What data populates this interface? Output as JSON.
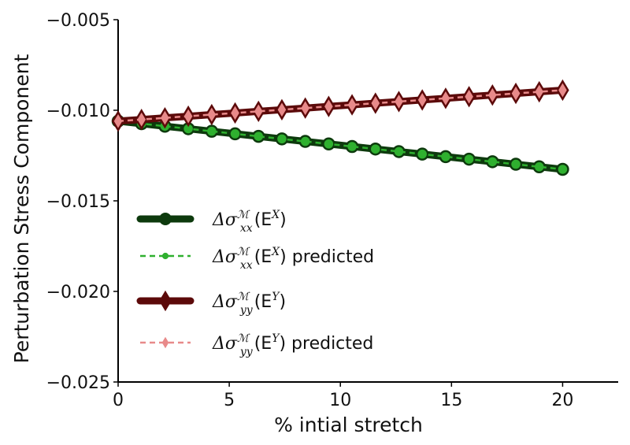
{
  "chart_data": {
    "type": "line",
    "xlabel": "% intial stretch",
    "ylabel": "Perturbation Stress Component",
    "xlim": [
      0,
      22.5
    ],
    "ylim": [
      -0.025,
      -0.005
    ],
    "xticks": [
      0,
      5,
      10,
      15,
      20
    ],
    "xtick_labels": [
      "0",
      "5",
      "10",
      "15",
      "20"
    ],
    "yticks": [
      -0.005,
      -0.01,
      -0.015,
      -0.02,
      -0.025
    ],
    "ytick_labels": [
      "−0.005",
      "−0.010",
      "−0.015",
      "−0.020",
      "−0.025"
    ],
    "grid": false,
    "legend_position": "lower-left",
    "x": [
      0,
      1.053,
      2.105,
      3.158,
      4.211,
      5.263,
      6.316,
      7.368,
      8.421,
      9.474,
      10.526,
      11.579,
      12.632,
      13.684,
      14.737,
      15.789,
      16.842,
      17.895,
      18.947,
      20
    ],
    "series": [
      {
        "name": "Δσxx(EX)",
        "legend_label": "Δσ",
        "legend_sub": "xx",
        "legend_sup": "ℳ",
        "legend_arg": "(E",
        "legend_arg_sup": "X",
        "legend_close": ")",
        "legend_suffix": "",
        "style": "solid",
        "marker": "circle",
        "color": "#0d3a0d",
        "fill": "#2fb02f",
        "values": [
          -0.0106,
          -0.01074,
          -0.01088,
          -0.01102,
          -0.01116,
          -0.0113,
          -0.01144,
          -0.01158,
          -0.01172,
          -0.01186,
          -0.012,
          -0.01214,
          -0.01228,
          -0.01242,
          -0.01256,
          -0.0127,
          -0.01284,
          -0.01298,
          -0.01312,
          -0.01326
        ]
      },
      {
        "name": "Δσxx(EX) predicted",
        "legend_label": "Δσ",
        "legend_sub": "xx",
        "legend_sup": "ℳ",
        "legend_arg": "(E",
        "legend_arg_sup": "X",
        "legend_close": ")",
        "legend_suffix": " predicted",
        "style": "dashed",
        "marker": "circle",
        "color": "#2fb02f",
        "fill": "#2fb02f",
        "values": [
          -0.0106,
          -0.01074,
          -0.01088,
          -0.01102,
          -0.01116,
          -0.0113,
          -0.01144,
          -0.01158,
          -0.01172,
          -0.01186,
          -0.012,
          -0.01214,
          -0.01228,
          -0.01242,
          -0.01256,
          -0.0127,
          -0.01284,
          -0.01298,
          -0.01312,
          -0.01326
        ]
      },
      {
        "name": "Δσyy(EY)",
        "legend_label": "Δσ",
        "legend_sub": "yy",
        "legend_sup": "ℳ",
        "legend_arg": "(E",
        "legend_arg_sup": "Y",
        "legend_close": ")",
        "legend_suffix": "",
        "style": "solid",
        "marker": "diamond",
        "color": "#5c0a0a",
        "fill": "#e88a8a",
        "values": [
          -0.0106,
          -0.01051,
          -0.01042,
          -0.01033,
          -0.01024,
          -0.01015,
          -0.01006,
          -0.00997,
          -0.00988,
          -0.00979,
          -0.0097,
          -0.00961,
          -0.00952,
          -0.00943,
          -0.00934,
          -0.00925,
          -0.00916,
          -0.00907,
          -0.00898,
          -0.00889
        ]
      },
      {
        "name": "Δσyy(EY) predicted",
        "legend_label": "Δσ",
        "legend_sub": "yy",
        "legend_sup": "ℳ",
        "legend_arg": "(E",
        "legend_arg_sup": "Y",
        "legend_close": ")",
        "legend_suffix": " predicted",
        "style": "dashed",
        "marker": "diamond",
        "color": "#e88a8a",
        "fill": "#e88a8a",
        "values": [
          -0.0106,
          -0.01051,
          -0.01042,
          -0.01033,
          -0.01024,
          -0.01015,
          -0.01006,
          -0.00997,
          -0.00988,
          -0.00979,
          -0.0097,
          -0.00961,
          -0.00952,
          -0.00943,
          -0.00934,
          -0.00925,
          -0.00916,
          -0.00907,
          -0.00898,
          -0.00889
        ]
      }
    ]
  }
}
